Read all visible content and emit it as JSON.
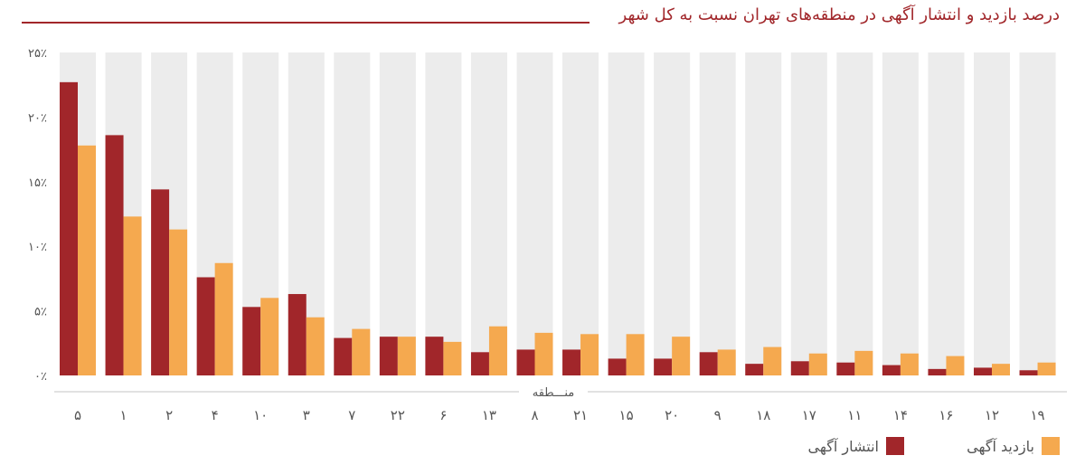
{
  "title": "درصد بازدید و انتشار آگهی در منطقه‌های تهران نسبت به کل شهر",
  "colors": {
    "publish": "#a1262a",
    "visit": "#f5a94f",
    "band": "#ececec",
    "title": "#a1262a",
    "text": "#555555"
  },
  "legend": {
    "publish": "انتشار آگهی",
    "visit": "بازدید آگهی"
  },
  "chart_data": {
    "type": "bar",
    "title": "درصد بازدید و انتشار آگهی در منطقه‌های تهران نسبت به کل شهر",
    "xlabel": "منـــطقه",
    "ylabel": "",
    "ylim": [
      0,
      25
    ],
    "yticks": [
      0,
      5,
      10,
      15,
      20,
      25
    ],
    "ytick_labels": [
      "۰٪",
      "۵٪",
      "۱۰٪",
      "۱۵٪",
      "۲۰٪",
      "۲۵٪"
    ],
    "grid": false,
    "legend_position": "bottom-right",
    "categories": [
      "۵",
      "۱",
      "۲",
      "۴",
      "۱۰",
      "۳",
      "۷",
      "۲۲",
      "۶",
      "۱۳",
      "۸",
      "۲۱",
      "۱۵",
      "۲۰",
      "۹",
      "۱۸",
      "۱۷",
      "۱۱",
      "۱۴",
      "۱۶",
      "۱۲",
      "۱۹"
    ],
    "series": [
      {
        "name": "انتشار آگهی",
        "values": [
          22.7,
          18.6,
          14.4,
          7.6,
          5.3,
          6.3,
          2.9,
          3.0,
          3.0,
          1.8,
          2.0,
          2.0,
          1.3,
          1.3,
          1.8,
          0.9,
          1.1,
          1.0,
          0.8,
          0.5,
          0.6,
          0.4
        ]
      },
      {
        "name": "بازدید آگهی",
        "values": [
          17.8,
          12.3,
          11.3,
          8.7,
          6.0,
          4.5,
          3.6,
          3.0,
          2.6,
          3.8,
          3.3,
          3.2,
          3.2,
          3.0,
          2.0,
          2.2,
          1.7,
          1.9,
          1.7,
          1.5,
          0.9,
          1.0
        ]
      }
    ]
  }
}
